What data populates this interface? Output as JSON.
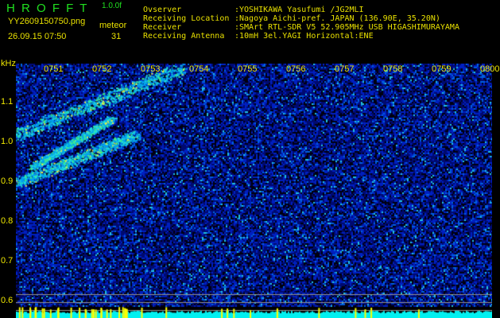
{
  "header": {
    "title": "H R O F F T",
    "version": "1.0.0f",
    "filename": "YY2609150750.png",
    "datetime": "26.09.15 07:50",
    "meteor_label": "meteor",
    "meteor_count": "31",
    "info_labels": [
      "Ovserver",
      "Receiving Location",
      "Receiver",
      "Receiving Antenna"
    ],
    "info_values": [
      ":YOSHIKAWA Yasufumi /JG2MLI",
      ":Nagoya Aichi-pref. JAPAN (136.90E, 35.20N)",
      ":SMArt RTL-SDR V5 52.905MHz USB HIGASHIMURAYAMA",
      ":10mH 3el.YAGI Horizontal:ENE"
    ]
  },
  "spectrogram": {
    "y_unit": "kHz",
    "y_ticks": [
      "1.1",
      "1.0",
      "0.9",
      "0.8",
      "0.7",
      "0.6"
    ],
    "time_ticks": [
      "0751",
      "0752",
      "0753",
      "0754",
      "0755",
      "0756",
      "0757",
      "0758",
      "0759",
      "0800"
    ],
    "colors": {
      "label": "#f0e800",
      "title": "#20e020",
      "level_bar": "#00f0f0",
      "peak": "#ffff00"
    }
  }
}
